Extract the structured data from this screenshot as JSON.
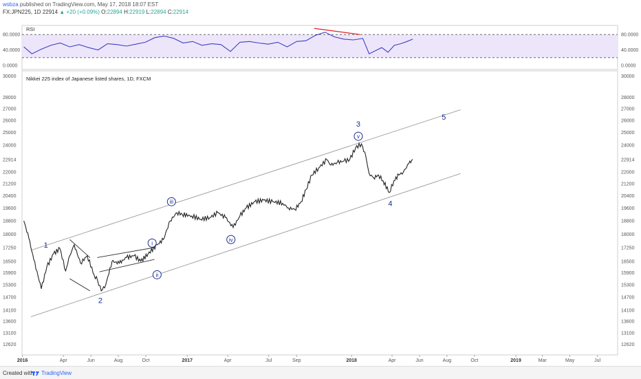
{
  "header": {
    "author": "wsbza",
    "published": "published on TradingView.com, May 17, 2018 18:07 EST",
    "symbol": "FX:JPN225, 1D",
    "last": "22914",
    "change": "+20 (+0.09%)",
    "o_label": "O:",
    "o": "22894",
    "h_label": "H:",
    "h": "22919",
    "l_label": "L:",
    "l": "22894",
    "c_label": "C:",
    "c": "22914"
  },
  "footer": {
    "created": "Created with",
    "brand": "TradingView"
  },
  "colors": {
    "price": "#222222",
    "rsi": "#3f3fbf",
    "rsi_band": "#ede6fb",
    "divergence": "#e02020",
    "channel": "#9a9a9a",
    "wave_label": "#1a2b8c",
    "axis_text": "#555555"
  },
  "chart_data": [
    {
      "type": "line",
      "title": "RSI",
      "ylim": [
        0,
        100
      ],
      "y_ticks": [
        "80.0000",
        "40.0000",
        "0.0000"
      ],
      "y_tick_values": [
        80,
        40,
        0
      ],
      "bands": [
        20,
        80
      ],
      "x": [
        "2016-01-04",
        "2016-01-22",
        "2016-02-12",
        "2016-03-04",
        "2016-03-25",
        "2016-04-15",
        "2016-05-06",
        "2016-05-27",
        "2016-06-17",
        "2016-07-08",
        "2016-07-29",
        "2016-08-19",
        "2016-09-09",
        "2016-09-30",
        "2016-10-21",
        "2016-11-11",
        "2016-12-02",
        "2016-12-23",
        "2017-01-13",
        "2017-02-03",
        "2017-02-24",
        "2017-03-17",
        "2017-04-07",
        "2017-04-28",
        "2017-05-19",
        "2017-06-09",
        "2017-06-30",
        "2017-07-21",
        "2017-08-11",
        "2017-09-01",
        "2017-09-22",
        "2017-10-13",
        "2017-11-03",
        "2017-11-24",
        "2017-12-15",
        "2018-01-05",
        "2018-01-26",
        "2018-02-09",
        "2018-02-23",
        "2018-03-09",
        "2018-03-23",
        "2018-04-06",
        "2018-04-20",
        "2018-05-04",
        "2018-05-17"
      ],
      "values": [
        48,
        30,
        42,
        52,
        58,
        48,
        54,
        46,
        40,
        56,
        54,
        50,
        55,
        60,
        72,
        76,
        70,
        58,
        62,
        52,
        56,
        54,
        36,
        60,
        62,
        58,
        55,
        60,
        48,
        62,
        64,
        78,
        86,
        74,
        68,
        66,
        70,
        30,
        38,
        46,
        34,
        52,
        56,
        62,
        68
      ],
      "annotation": {
        "type": "trendline",
        "from": [
          "2017-10-10",
          96
        ],
        "to": [
          "2018-01-20",
          80
        ],
        "color": "#e02020"
      }
    },
    {
      "type": "line",
      "title": "Nikkei 225 index of Japanese listed shares, 1D, FXCM",
      "y_scale": "log",
      "ylim": [
        12200,
        30500
      ],
      "y_ticks": [
        30000,
        28000,
        27000,
        26000,
        25000,
        24000,
        22914,
        22000,
        21200,
        20400,
        19600,
        18800,
        18000,
        17250,
        16500,
        15900,
        15300,
        14700,
        14100,
        13600,
        13100,
        12620
      ],
      "x_ticks": [
        "2016",
        "Apr",
        "Jun",
        "Aug",
        "Oct",
        "2017",
        "Apr",
        "Jul",
        "Sep",
        "2018",
        "Apr",
        "Jun",
        "Aug",
        "Oct",
        "2019",
        "Mar",
        "May",
        "Jul"
      ],
      "x_tick_dates": [
        "2016-01-01",
        "2016-04-01",
        "2016-06-01",
        "2016-08-01",
        "2016-10-01",
        "2017-01-01",
        "2017-04-01",
        "2017-07-01",
        "2017-09-01",
        "2018-01-01",
        "2018-04-01",
        "2018-06-01",
        "2018-08-01",
        "2018-10-01",
        "2019-01-01",
        "2019-03-01",
        "2019-05-01",
        "2019-07-01"
      ],
      "x_range": [
        "2015-12-31",
        "2019-08-15"
      ],
      "x": [
        "2016-01-04",
        "2016-01-15",
        "2016-01-26",
        "2016-02-12",
        "2016-02-24",
        "2016-03-10",
        "2016-03-24",
        "2016-04-06",
        "2016-04-15",
        "2016-04-25",
        "2016-05-09",
        "2016-05-24",
        "2016-06-08",
        "2016-06-16",
        "2016-06-24",
        "2016-07-04",
        "2016-07-18",
        "2016-08-03",
        "2016-08-19",
        "2016-09-05",
        "2016-09-20",
        "2016-10-06",
        "2016-10-26",
        "2016-11-09",
        "2016-11-24",
        "2016-12-09",
        "2016-12-21",
        "2017-01-11",
        "2017-01-31",
        "2017-02-20",
        "2017-03-10",
        "2017-03-27",
        "2017-04-13",
        "2017-04-28",
        "2017-05-12",
        "2017-05-31",
        "2017-06-20",
        "2017-07-10",
        "2017-08-01",
        "2017-08-14",
        "2017-08-28",
        "2017-09-11",
        "2017-09-22",
        "2017-10-05",
        "2017-10-20",
        "2017-11-07",
        "2017-11-16",
        "2017-11-30",
        "2017-12-15",
        "2017-12-28",
        "2018-01-10",
        "2018-01-23",
        "2018-02-02",
        "2018-02-09",
        "2018-02-19",
        "2018-03-02",
        "2018-03-12",
        "2018-03-26",
        "2018-04-05",
        "2018-04-16",
        "2018-04-26",
        "2018-05-08",
        "2018-05-17"
      ],
      "values": [
        18800,
        17800,
        16600,
        15100,
        16200,
        16900,
        17200,
        16000,
        16800,
        17400,
        16400,
        16800,
        15800,
        15500,
        15000,
        15300,
        16500,
        16400,
        16700,
        16800,
        16500,
        16900,
        17400,
        17700,
        18800,
        19300,
        19200,
        19100,
        18900,
        19000,
        19300,
        19000,
        18400,
        19100,
        19600,
        20000,
        20100,
        20000,
        19900,
        19600,
        19500,
        20000,
        20800,
        21800,
        22300,
        22900,
        22500,
        22700,
        22800,
        22900,
        23800,
        24100,
        23100,
        21900,
        21600,
        21800,
        21400,
        20600,
        21400,
        21800,
        22000,
        22600,
        22914
      ],
      "annotations": {
        "channel_upper": {
          "from": [
            "2016-01-20",
            17100
          ],
          "to": [
            "2018-08-31",
            26900
          ]
        },
        "channel_lower": {
          "from": [
            "2016-01-20",
            13800
          ],
          "to": [
            "2018-08-31",
            21900
          ]
        },
        "wedge_upper": {
          "from": [
            "2016-04-15",
            17700
          ],
          "to": [
            "2016-05-30",
            16700
          ]
        },
        "wedge_lower": {
          "from": [
            "2016-04-15",
            15600
          ],
          "to": [
            "2016-05-30",
            15000
          ]
        },
        "triangle_upper": {
          "from": [
            "2016-06-15",
            16700
          ],
          "to": [
            "2016-10-20",
            17250
          ]
        },
        "triangle_lower": {
          "from": [
            "2016-06-20",
            15950
          ],
          "to": [
            "2016-10-20",
            16600
          ]
        }
      },
      "wave_labels": [
        {
          "text": "1",
          "x": "2016-02-22",
          "y": 17400,
          "circled": false
        },
        {
          "text": "2",
          "x": "2016-06-22",
          "y": 14550,
          "circled": false
        },
        {
          "text": "i",
          "x": "2016-10-15",
          "y": 17500,
          "circled": true
        },
        {
          "text": "ii",
          "x": "2016-10-26",
          "y": 15800,
          "circled": true
        },
        {
          "text": "iii",
          "x": "2016-11-27",
          "y": 20000,
          "circled": true
        },
        {
          "text": "iv",
          "x": "2017-04-08",
          "y": 17700,
          "circled": true
        },
        {
          "text": "3",
          "x": "2018-01-16",
          "y": 25700,
          "circled": false
        },
        {
          "text": "v",
          "x": "2018-01-16",
          "y": 24700,
          "circled": true
        },
        {
          "text": "4",
          "x": "2018-03-28",
          "y": 19900,
          "circled": false
        },
        {
          "text": "5",
          "x": "2018-07-25",
          "y": 26300,
          "circled": false
        }
      ]
    }
  ]
}
